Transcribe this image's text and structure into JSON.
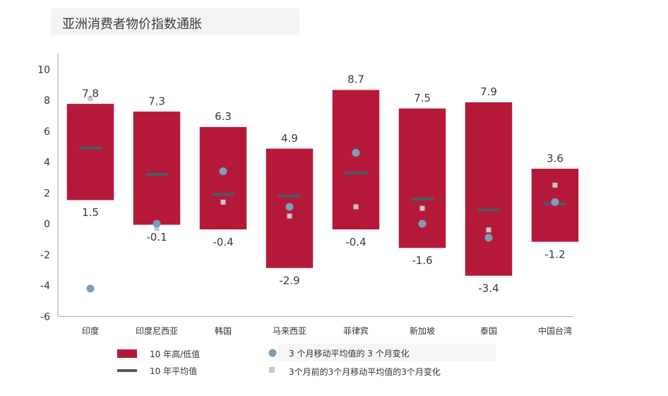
{
  "chart_data": {
    "type": "bar",
    "title": "亚洲消费者物价指数通胀",
    "categories": [
      "印度",
      "印度尼西亚",
      "韩国",
      "马来西亚",
      "菲律宾",
      "新加坡",
      "泰国",
      "中国台湾"
    ],
    "high": [
      7.8,
      7.3,
      6.3,
      4.9,
      8.7,
      7.5,
      7.9,
      3.6
    ],
    "low": [
      1.5,
      -0.1,
      -0.4,
      -2.9,
      -0.4,
      -1.6,
      -3.4,
      -1.2
    ],
    "high_labels": [
      "7.8",
      "7.3",
      "6.3",
      "4.9",
      "8.7",
      "7.5",
      "7.9",
      "3.6"
    ],
    "low_labels": [
      "1.5",
      "-0.1",
      "-0.4",
      "-2.9",
      "-0.4",
      "-1.6",
      "-3.4",
      "-1.2"
    ],
    "avg": [
      4.9,
      3.2,
      1.9,
      1.8,
      3.3,
      1.6,
      0.9,
      1.3
    ],
    "ma3_change": [
      -4.2,
      0.0,
      3.4,
      1.1,
      4.6,
      0.0,
      -0.9,
      1.4
    ],
    "ma3_change_3m_ago": [
      8.1,
      -0.3,
      1.4,
      0.5,
      1.1,
      1.0,
      -0.4,
      2.5
    ],
    "ylim": [
      -6,
      11
    ],
    "yticks": [
      -6,
      -4,
      -2,
      0,
      2,
      4,
      6,
      8,
      10
    ],
    "ytick_labels": [
      "-6",
      "-4",
      "-2",
      "0",
      "2",
      "4",
      "6",
      "8",
      "10"
    ],
    "legend": {
      "range": "10 年高/低值",
      "avg": "10 年平均值",
      "ma3": "3 个月移动平均值的 3 个月变化",
      "ma3_prev": "3个月前的3个月移动平均值的3个月变化"
    },
    "colors": {
      "bar": "#b5193a",
      "avg": "#4d5964",
      "ma3": "#7a9fbd",
      "ma3_prev": "#c8c8c8",
      "axis": "#a0a0a0"
    }
  }
}
